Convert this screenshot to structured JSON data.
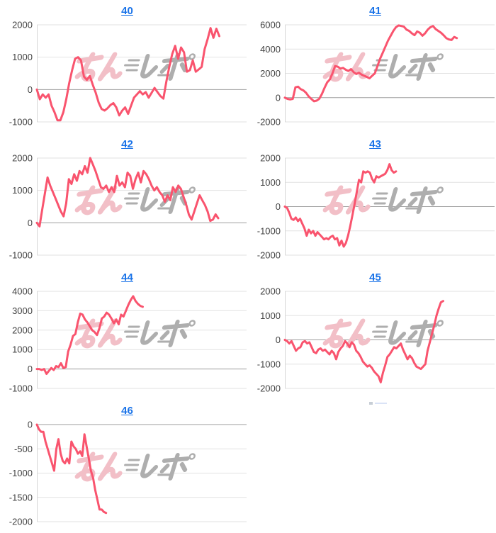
{
  "page": {
    "background": "#ffffff"
  },
  "colors": {
    "series_line": "#f9546e",
    "title_link": "#1a73e8",
    "axis_label": "#444444",
    "gridline": "#e2e2e2",
    "zero_line": "#9e9e9e",
    "axis_edge": "#d6d6d6",
    "watermark_pink": "#f2bfc7",
    "watermark_gray": "#aeaeae"
  },
  "watermark": {
    "text": "みんレポ",
    "pink_part": "みん",
    "gray_part": "レポ"
  },
  "chart_data": [
    {
      "title": "40",
      "type": "line",
      "xlabel": "",
      "ylabel": "",
      "ylim": [
        -1000,
        2000
      ],
      "yticks": [
        2000,
        1000,
        0,
        -1000
      ],
      "xticks": [],
      "legend": "none",
      "grid": true,
      "end_fraction": 0.87,
      "values": [
        0,
        -300,
        -150,
        -250,
        -150,
        -500,
        -700,
        -950,
        -950,
        -700,
        -300,
        200,
        600,
        950,
        1000,
        900,
        400,
        300,
        420,
        150,
        -100,
        -400,
        -600,
        -650,
        -580,
        -480,
        -420,
        -550,
        -800,
        -650,
        -550,
        -750,
        -500,
        -250,
        -150,
        -50,
        -150,
        -80,
        -250,
        -100,
        50,
        -80,
        -200,
        -280,
        250,
        700,
        1100,
        1350,
        950,
        1300,
        1150,
        550,
        600,
        900,
        550,
        620,
        700,
        1250,
        1550,
        1900,
        1600,
        1880,
        1650
      ]
    },
    {
      "title": "41",
      "type": "line",
      "xlabel": "",
      "ylabel": "",
      "ylim": [
        -2000,
        6000
      ],
      "yticks": [
        6000,
        4000,
        2000,
        0,
        -2000
      ],
      "xticks": [],
      "legend": "none",
      "grid": true,
      "end_fraction": 0.82,
      "values": [
        0,
        -100,
        -150,
        -100,
        850,
        900,
        700,
        600,
        400,
        100,
        -100,
        -300,
        -250,
        -100,
        300,
        800,
        1250,
        1500,
        2000,
        2600,
        2550,
        2400,
        2450,
        2300,
        2200,
        2350,
        2100,
        1950,
        2050,
        1900,
        1800,
        1700,
        1600,
        1800,
        2000,
        2600,
        3200,
        3700,
        4200,
        4700,
        5100,
        5500,
        5800,
        5950,
        5900,
        5850,
        5600,
        5500,
        5300,
        5150,
        5450,
        5350,
        5100,
        5300,
        5600,
        5800,
        5900,
        5650,
        5500,
        5350,
        5150,
        4900,
        4800,
        4750,
        5000,
        4900
      ]
    },
    {
      "title": "42",
      "type": "line",
      "xlabel": "",
      "ylabel": "",
      "ylim": [
        -1000,
        2000
      ],
      "yticks": [
        2000,
        1000,
        0,
        -1000
      ],
      "xticks": [],
      "legend": "none",
      "grid": true,
      "end_fraction": 0.865,
      "values": [
        0,
        -110,
        400,
        900,
        1400,
        1150,
        950,
        750,
        550,
        350,
        200,
        600,
        1350,
        1200,
        1500,
        1300,
        1600,
        1500,
        1750,
        1550,
        2000,
        1800,
        1600,
        1350,
        1100,
        1050,
        1150,
        950,
        1100,
        950,
        1450,
        1150,
        1250,
        1100,
        1550,
        1450,
        1050,
        1350,
        1550,
        1250,
        1600,
        1500,
        1350,
        1150,
        1000,
        1100,
        950,
        850,
        650,
        850,
        700,
        1100,
        950,
        1150,
        1050,
        800,
        550,
        250,
        100,
        350,
        600,
        850,
        700,
        550,
        350,
        60,
        100,
        260,
        140
      ]
    },
    {
      "title": "43",
      "type": "line",
      "xlabel": "",
      "ylabel": "",
      "ylim": [
        -2000,
        2000
      ],
      "yticks": [
        2000,
        1000,
        0,
        -1000,
        -2000
      ],
      "xticks": [],
      "legend": "none",
      "grid": true,
      "end_fraction": 0.53,
      "values": [
        0,
        -50,
        -250,
        -500,
        -550,
        -450,
        -600,
        -500,
        -700,
        -900,
        -1200,
        -950,
        -1100,
        -1000,
        -1200,
        -1050,
        -1150,
        -1250,
        -1350,
        -1300,
        -1350,
        -1250,
        -1200,
        -1350,
        -1300,
        -1600,
        -1400,
        -1650,
        -1500,
        -1200,
        -800,
        -350,
        100,
        600,
        1100,
        1000,
        1450,
        1400,
        1450,
        1400,
        1150,
        1000,
        1250,
        1200,
        1250,
        1300,
        1350,
        1500,
        1750,
        1500,
        1400,
        1450
      ]
    },
    {
      "title": "44",
      "type": "line",
      "xlabel": "",
      "ylabel": "",
      "ylim": [
        -1000,
        4000
      ],
      "yticks": [
        4000,
        3000,
        2000,
        1000,
        0,
        -1000
      ],
      "xticks": [],
      "legend": "none",
      "grid": true,
      "end_fraction": 0.505,
      "values": [
        0,
        0,
        -50,
        0,
        -250,
        -100,
        50,
        -50,
        150,
        100,
        300,
        50,
        100,
        900,
        1250,
        1700,
        1800,
        2400,
        2850,
        2800,
        2550,
        2400,
        2200,
        2000,
        1900,
        1750,
        2100,
        2600,
        2700,
        2900,
        2800,
        2600,
        2350,
        2550,
        2300,
        2800,
        2700,
        3000,
        3300,
        3550,
        3750,
        3500,
        3350,
        3250,
        3200
      ]
    },
    {
      "title": "45",
      "type": "line",
      "xlabel": "",
      "ylabel": "",
      "ylim": [
        -2000,
        2000
      ],
      "yticks": [
        2000,
        1000,
        0,
        -1000,
        -2000
      ],
      "xticks": [],
      "legend": "none",
      "grid": true,
      "end_fraction": 0.755,
      "values": [
        0,
        -50,
        -150,
        -50,
        -250,
        -450,
        -350,
        -300,
        -100,
        -50,
        -150,
        -100,
        -300,
        -500,
        -550,
        -400,
        -350,
        -450,
        -400,
        -500,
        -600,
        -450,
        -550,
        -800,
        -500,
        -350,
        -250,
        -50,
        -150,
        -300,
        -100,
        -200,
        -450,
        -550,
        -700,
        -900,
        -1000,
        -1100,
        -1050,
        -1150,
        -1300,
        -1400,
        -1500,
        -1750,
        -1350,
        -1050,
        -700,
        -600,
        -450,
        -300,
        -350,
        -250,
        -150,
        -400,
        -600,
        -800,
        -650,
        -750,
        -950,
        -1100,
        -1150,
        -1200,
        -1100,
        -1000,
        -450,
        -100,
        250,
        600,
        1000,
        1300,
        1550,
        1600
      ]
    },
    {
      "title": "46",
      "type": "line",
      "xlabel": "",
      "ylabel": "",
      "ylim": [
        -2000,
        0
      ],
      "yticks": [
        0,
        -500,
        -1000,
        -1500,
        -2000
      ],
      "xticks": [],
      "legend": "none",
      "grid": true,
      "end_fraction": 0.33,
      "values": [
        0,
        -100,
        -150,
        -150,
        -350,
        -500,
        -650,
        -800,
        -950,
        -500,
        -300,
        -600,
        -750,
        -800,
        -700,
        -800,
        -350,
        -450,
        -500,
        -600,
        -550,
        -650,
        -200,
        -450,
        -700,
        -950,
        -1100,
        -1350,
        -1550,
        -1750,
        -1750,
        -1800,
        -1820
      ]
    }
  ]
}
